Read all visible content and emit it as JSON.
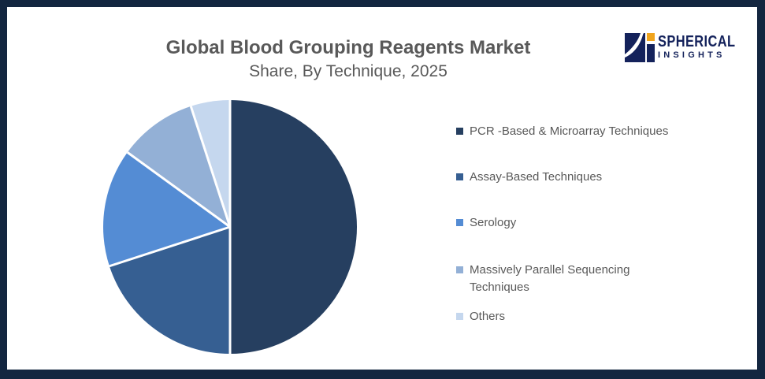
{
  "header": {
    "title": "Global Blood Grouping Reagents Market",
    "subtitle": "Share, By Technique, 2025"
  },
  "logo": {
    "brand_top": "SPHERICAL",
    "brand_bottom": "INSIGHTS",
    "mark_icon": "spherical-insights-swoosh-monogram"
  },
  "theme": {
    "frame": "#132640",
    "background": "#FFFFFF",
    "title_text": "#595959",
    "legend_text": "#595959",
    "logo_navy": "#14225B",
    "logo_orange": "#F0A41D"
  },
  "chart_data": {
    "type": "pie",
    "title": "Global Blood Grouping Reagents Market Share, By Technique, 2025",
    "categories": [
      "PCR -Based & Microarray Techniques",
      "Assay-Based Techniques",
      "Serology",
      "Massively Parallel Sequencing Techniques",
      "Others"
    ],
    "values": [
      50,
      20,
      15,
      10,
      5
    ],
    "unit": "percent (estimated from slice angles; no data labels shown)",
    "colors": [
      "#263F60",
      "#365F92",
      "#548CD4",
      "#93B0D6",
      "#C5D7EE"
    ],
    "start_angle_deg": 0,
    "direction": "clockwise",
    "separator_color": "#FFFFFF",
    "legend_position": "right",
    "data_labels": false
  }
}
